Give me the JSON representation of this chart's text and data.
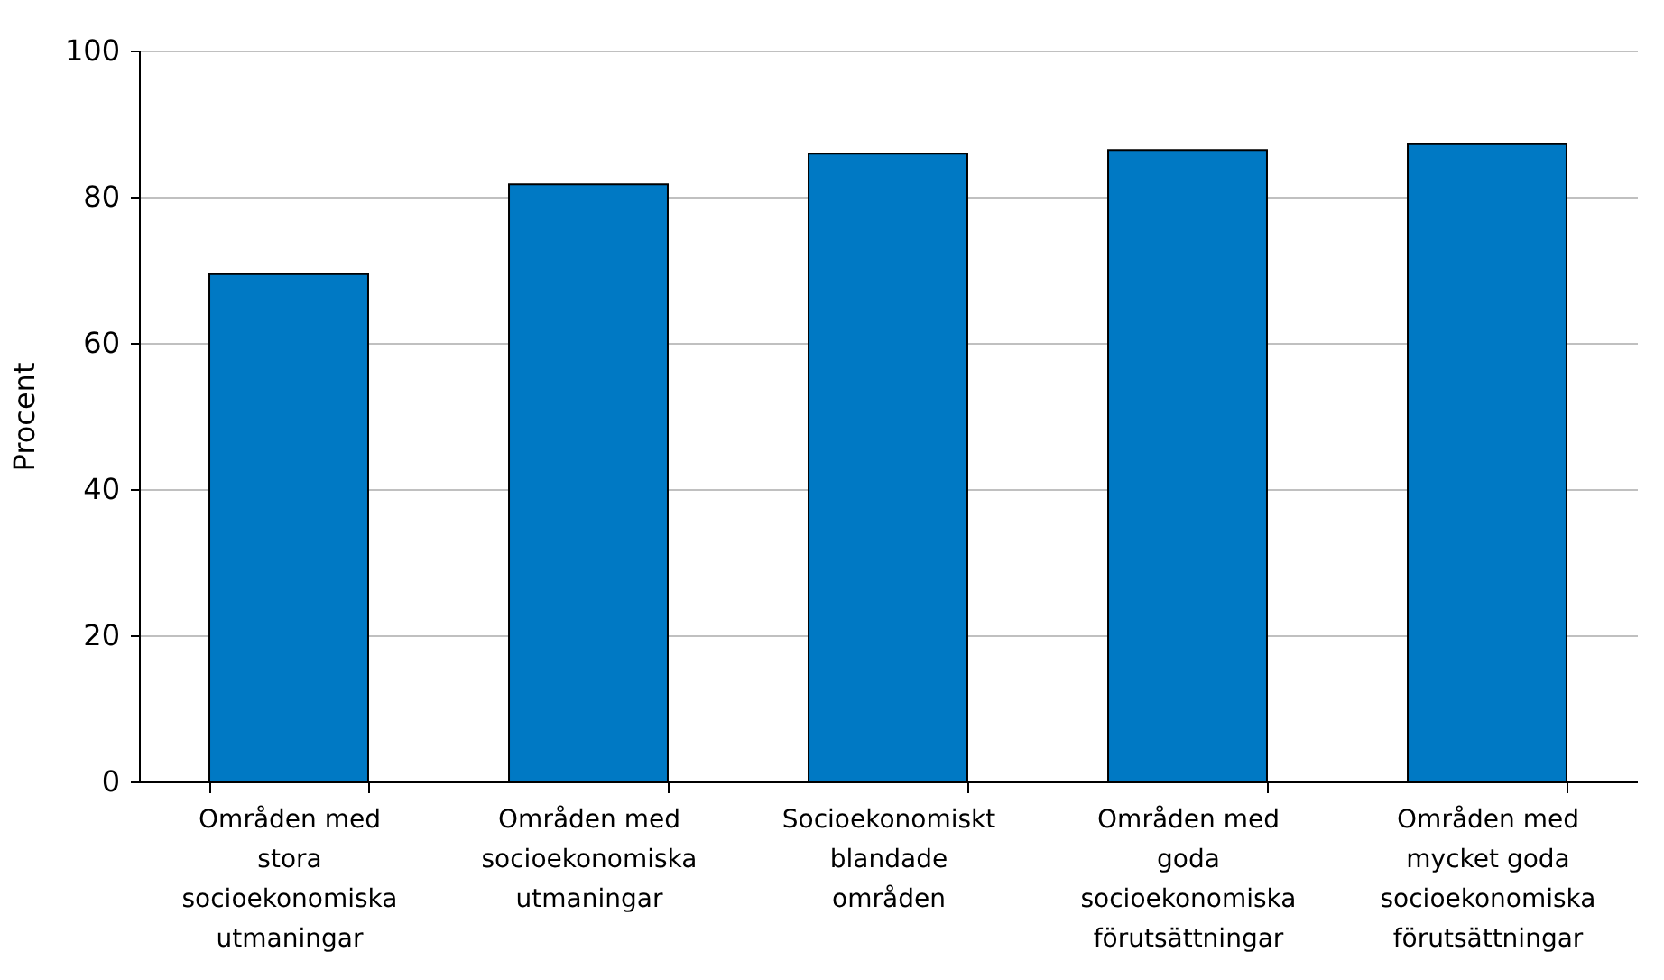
{
  "chart_data": {
    "type": "bar",
    "ylabel": "Procent",
    "categories": [
      "Områden med stora socioekonomiska utmaningar",
      "Områden med socioekonomiska utmaningar",
      "Socioekonomiskt blandade områden",
      "Områden med goda socioekonomiska förutsättningar",
      "Områden med mycket goda socioekonomiska förutsättningar"
    ],
    "values": [
      69.4,
      81.7,
      85.9,
      86.4,
      87.2
    ],
    "color": "#0079c4",
    "ylim": [
      0,
      100
    ],
    "yticks": [
      0,
      20,
      40,
      60,
      80,
      100
    ],
    "grid": "y"
  }
}
